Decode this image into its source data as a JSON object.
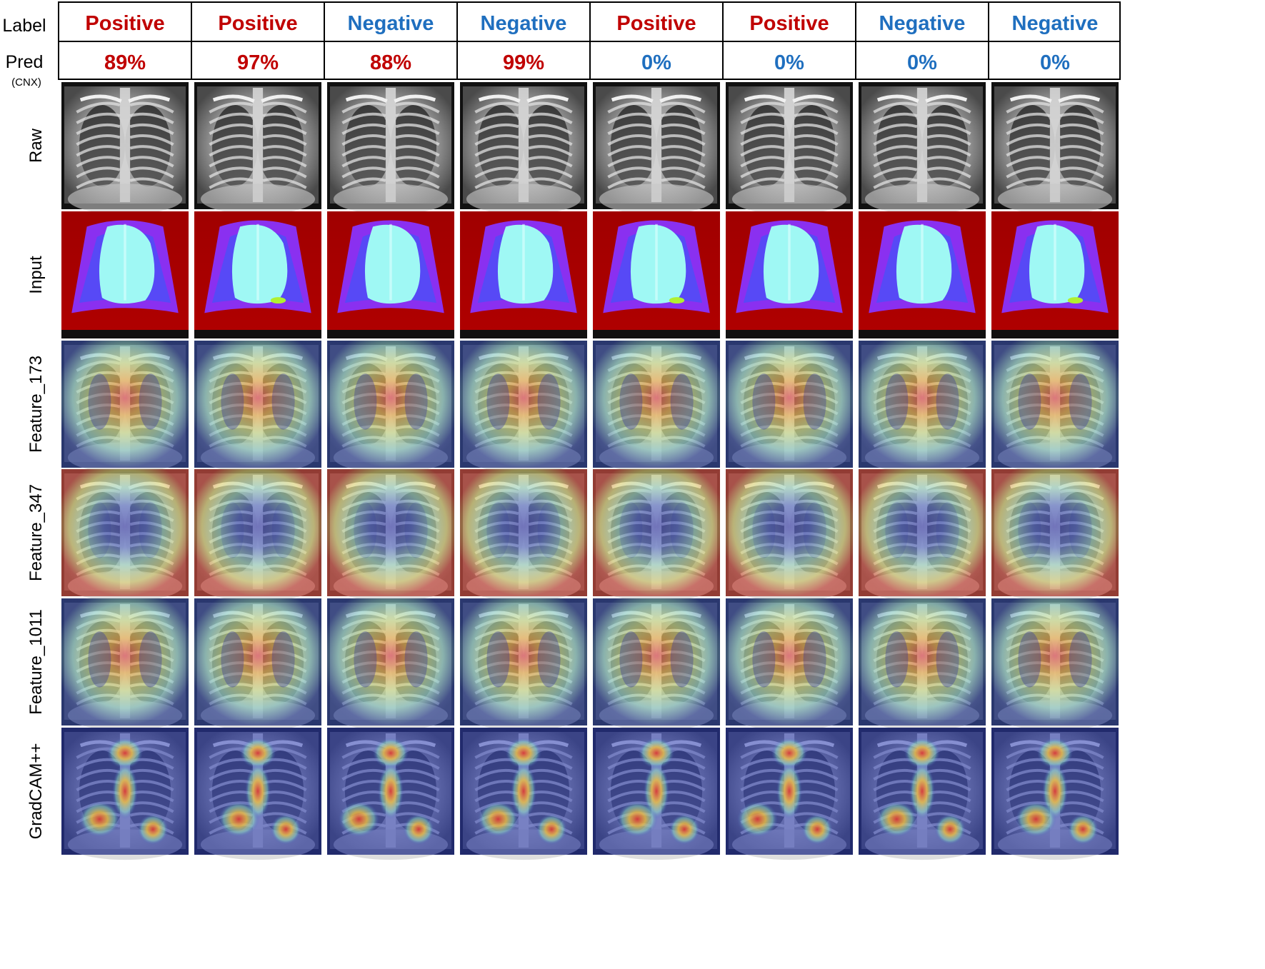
{
  "header": {
    "label_title": "Label",
    "pred_title": "Pred",
    "pred_subtitle": "(CNX)"
  },
  "columns": [
    {
      "label": "Positive",
      "pred": "89%",
      "label_color": "#c00000",
      "pred_color": "#c00000"
    },
    {
      "label": "Positive",
      "pred": "97%",
      "label_color": "#c00000",
      "pred_color": "#c00000"
    },
    {
      "label": "Negative",
      "pred": "88%",
      "label_color": "#1f6fbf",
      "pred_color": "#c00000"
    },
    {
      "label": "Negative",
      "pred": "99%",
      "label_color": "#1f6fbf",
      "pred_color": "#c00000"
    },
    {
      "label": "Positive",
      "pred": "0%",
      "label_color": "#c00000",
      "pred_color": "#1f6fbf"
    },
    {
      "label": "Positive",
      "pred": "0%",
      "label_color": "#c00000",
      "pred_color": "#1f6fbf"
    },
    {
      "label": "Negative",
      "pred": "0%",
      "label_color": "#1f6fbf",
      "pred_color": "#1f6fbf"
    },
    {
      "label": "Negative",
      "pred": "0%",
      "label_color": "#1f6fbf",
      "pred_color": "#1f6fbf"
    }
  ],
  "rows": [
    {
      "name": "Raw",
      "kind": "raw"
    },
    {
      "name": "Input",
      "kind": "input"
    },
    {
      "name": "Feature_173",
      "kind": "feature-center"
    },
    {
      "name": "Feature_347",
      "kind": "feature-inverse"
    },
    {
      "name": "Feature_1011",
      "kind": "feature-center"
    },
    {
      "name": "GradCAM++",
      "kind": "gradcam"
    }
  ],
  "colors": {
    "positive": "#c00000",
    "negative": "#1f6fbf",
    "grid": "#000000"
  }
}
